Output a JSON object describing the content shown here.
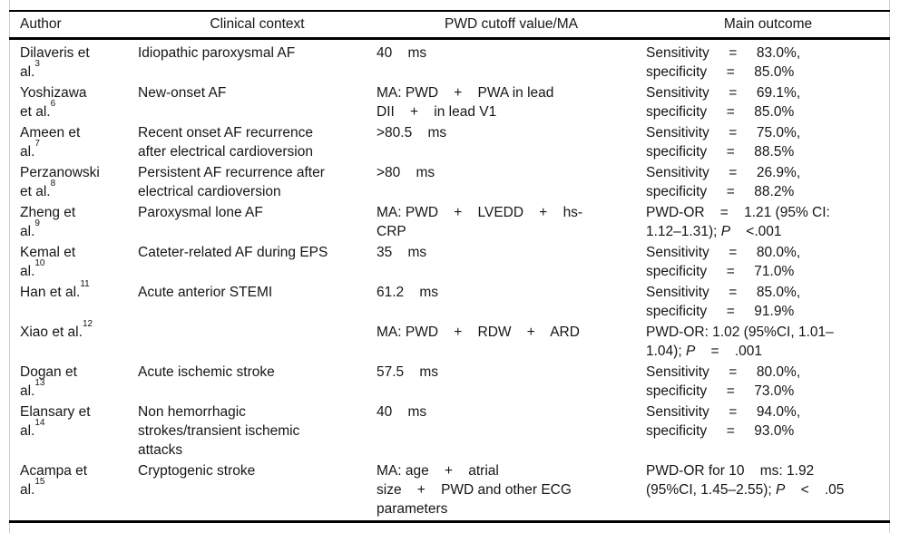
{
  "header": {
    "columns": [
      "Author",
      "Clinical context",
      "PWD cutoff value/MA",
      "Main outcome"
    ]
  },
  "table": {
    "rows": [
      {
        "author": [
          [
            {
              "t": "Dilaveris et"
            }
          ],
          [
            {
              "t": "al."
            },
            {
              "t": "3",
              "s": true
            }
          ]
        ],
        "context": [
          [
            {
              "t": "Idiopathic paroxysmal AF"
            }
          ]
        ],
        "cutoff": [
          [
            {
              "t": "40    ms"
            }
          ]
        ],
        "outcome": [
          [
            {
              "t": "Sensitivity     =     83.0%,"
            }
          ],
          [
            {
              "t": "specificity     =     85.0%"
            }
          ]
        ]
      },
      {
        "author": [
          [
            {
              "t": "Yoshizawa"
            }
          ],
          [
            {
              "t": "et al."
            },
            {
              "t": "6",
              "s": true
            }
          ]
        ],
        "context": [
          [
            {
              "t": "New-onset AF"
            }
          ]
        ],
        "cutoff": [
          [
            {
              "t": "MA: PWD    +    PWA in lead"
            }
          ],
          [
            {
              "t": "DII    +    in lead V1"
            }
          ]
        ],
        "outcome": [
          [
            {
              "t": "Sensitivity     =     69.1%,"
            }
          ],
          [
            {
              "t": "specificity     =     85.0%"
            }
          ]
        ]
      },
      {
        "author": [
          [
            {
              "t": "Ameen et"
            }
          ],
          [
            {
              "t": "al."
            },
            {
              "t": "7",
              "s": true
            }
          ]
        ],
        "context": [
          [
            {
              "t": "Recent onset AF recurrence"
            }
          ],
          [
            {
              "t": "after electrical cardioversion"
            }
          ]
        ],
        "cutoff": [
          [
            {
              "t": ">80.5    ms"
            }
          ]
        ],
        "outcome": [
          [
            {
              "t": "Sensitivity     =     75.0%,"
            }
          ],
          [
            {
              "t": "specificity     =     88.5%"
            }
          ]
        ]
      },
      {
        "author": [
          [
            {
              "t": "Perzanowski"
            }
          ],
          [
            {
              "t": "et al."
            },
            {
              "t": "8",
              "s": true
            }
          ]
        ],
        "context": [
          [
            {
              "t": "Persistent AF recurrence after"
            }
          ],
          [
            {
              "t": "electrical cardioversion"
            }
          ]
        ],
        "cutoff": [
          [
            {
              "t": ">80    ms"
            }
          ]
        ],
        "outcome": [
          [
            {
              "t": "Sensitivity     =     26.9%,"
            }
          ],
          [
            {
              "t": "specificity     =     88.2%"
            }
          ]
        ]
      },
      {
        "author": [
          [
            {
              "t": "Zheng et"
            }
          ],
          [
            {
              "t": "al."
            },
            {
              "t": "9",
              "s": true
            }
          ]
        ],
        "context": [
          [
            {
              "t": "Paroxysmal lone AF"
            }
          ]
        ],
        "cutoff": [
          [
            {
              "t": "MA: PWD    +    LVEDD    +    hs-"
            }
          ],
          [
            {
              "t": "CRP"
            }
          ]
        ],
        "outcome": [
          [
            {
              "t": "PWD-OR    =    1.21 (95% CI:"
            }
          ],
          [
            {
              "t": "1.12–1.31); "
            },
            {
              "t": "P",
              "i": true
            },
            {
              "t": "    <.001"
            }
          ]
        ]
      },
      {
        "author": [
          [
            {
              "t": "Kemal et"
            }
          ],
          [
            {
              "t": "al."
            },
            {
              "t": "10",
              "s": true
            }
          ]
        ],
        "context": [
          [
            {
              "t": "Cateter-related AF during EPS"
            }
          ]
        ],
        "cutoff": [
          [
            {
              "t": "35    ms"
            }
          ]
        ],
        "outcome": [
          [
            {
              "t": "Sensitivity     =     80.0%,"
            }
          ],
          [
            {
              "t": "specificity     =     71.0%"
            }
          ]
        ]
      },
      {
        "author": [
          [
            {
              "t": "Han et al."
            },
            {
              "t": "11",
              "s": true
            }
          ]
        ],
        "context": [
          [
            {
              "t": "Acute anterior STEMI"
            }
          ]
        ],
        "cutoff": [
          [
            {
              "t": "61.2    ms"
            }
          ]
        ],
        "outcome": [
          [
            {
              "t": "Sensitivity     =     85.0%,"
            }
          ],
          [
            {
              "t": "specificity     =     91.9%"
            }
          ]
        ]
      },
      {
        "author": [
          [
            {
              "t": "Xiao et al."
            },
            {
              "t": "12",
              "s": true
            }
          ]
        ],
        "context": [],
        "cutoff": [
          [
            {
              "t": "MA: PWD    +    RDW    +    ARD"
            }
          ]
        ],
        "outcome": [
          [
            {
              "t": "PWD-OR: 1.02 (95%CI, 1.01–"
            }
          ],
          [
            {
              "t": "1.04); "
            },
            {
              "t": "P",
              "i": true
            },
            {
              "t": "    =    .001"
            }
          ]
        ]
      },
      {
        "author": [
          [
            {
              "t": "Dogan et"
            }
          ],
          [
            {
              "t": "al."
            },
            {
              "t": "13",
              "s": true
            }
          ]
        ],
        "context": [
          [
            {
              "t": "Acute ischemic stroke"
            }
          ]
        ],
        "cutoff": [
          [
            {
              "t": "57.5    ms"
            }
          ]
        ],
        "outcome": [
          [
            {
              "t": "Sensitivity     =     80.0%,"
            }
          ],
          [
            {
              "t": "specificity     =     73.0%"
            }
          ]
        ]
      },
      {
        "author": [
          [
            {
              "t": "Elansary et"
            }
          ],
          [
            {
              "t": "al."
            },
            {
              "t": "14",
              "s": true
            }
          ]
        ],
        "context": [
          [
            {
              "t": "Non hemorrhagic"
            }
          ],
          [
            {
              "t": "strokes/transient ischemic"
            }
          ],
          [
            {
              "t": "attacks"
            }
          ]
        ],
        "cutoff": [
          [
            {
              "t": "40    ms"
            }
          ]
        ],
        "outcome": [
          [
            {
              "t": "Sensitivity     =     94.0%,"
            }
          ],
          [
            {
              "t": "specificity     =     93.0%"
            }
          ]
        ]
      },
      {
        "author": [
          [
            {
              "t": "Acampa et"
            }
          ],
          [
            {
              "t": "al."
            },
            {
              "t": "15",
              "s": true
            }
          ]
        ],
        "context": [
          [
            {
              "t": "Cryptogenic stroke"
            }
          ]
        ],
        "cutoff": [
          [
            {
              "t": "MA: age    +    atrial"
            }
          ],
          [
            {
              "t": "size    +    PWD and other ECG"
            }
          ],
          [
            {
              "t": "parameters"
            }
          ]
        ],
        "outcome": [
          [
            {
              "t": "PWD-OR for 10    ms: 1.92"
            }
          ],
          [
            {
              "t": "(95%CI, 1.45–2.55); "
            },
            {
              "t": "P",
              "i": true
            },
            {
              "t": "    <    .05"
            }
          ]
        ]
      }
    ]
  },
  "colors": {
    "rule": "#000000",
    "frame_line": "#cccccc",
    "text": "#161616"
  }
}
